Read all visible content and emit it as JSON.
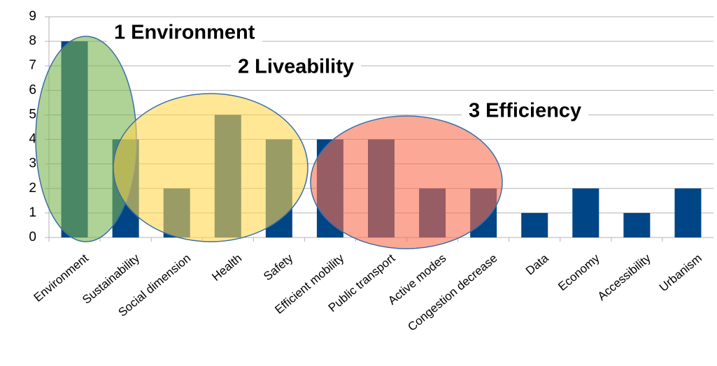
{
  "chart_data": {
    "type": "bar",
    "categories": [
      "Environment",
      "Sustainability",
      "Social dimension",
      "Health",
      "Safety",
      "Efficient mobility",
      "Public transport",
      "Active modes",
      "Congestion decrease",
      "Data",
      "Economy",
      "Accessibility",
      "Urbanism"
    ],
    "values": [
      8,
      4,
      2,
      5,
      4,
      4,
      4,
      2,
      2,
      1,
      2,
      1,
      2
    ],
    "color": "#004586",
    "ylim": [
      0,
      9
    ],
    "yticks": [
      0,
      1,
      2,
      3,
      4,
      5,
      6,
      7,
      8,
      9
    ],
    "grid": true,
    "annotations": [
      {
        "text": "1 Environment",
        "color": "#1a8a1a"
      },
      {
        "text": "2 Liveability",
        "color": "#f5a623"
      },
      {
        "text": "3 Efficiency",
        "color": "#f45a1e"
      }
    ]
  }
}
